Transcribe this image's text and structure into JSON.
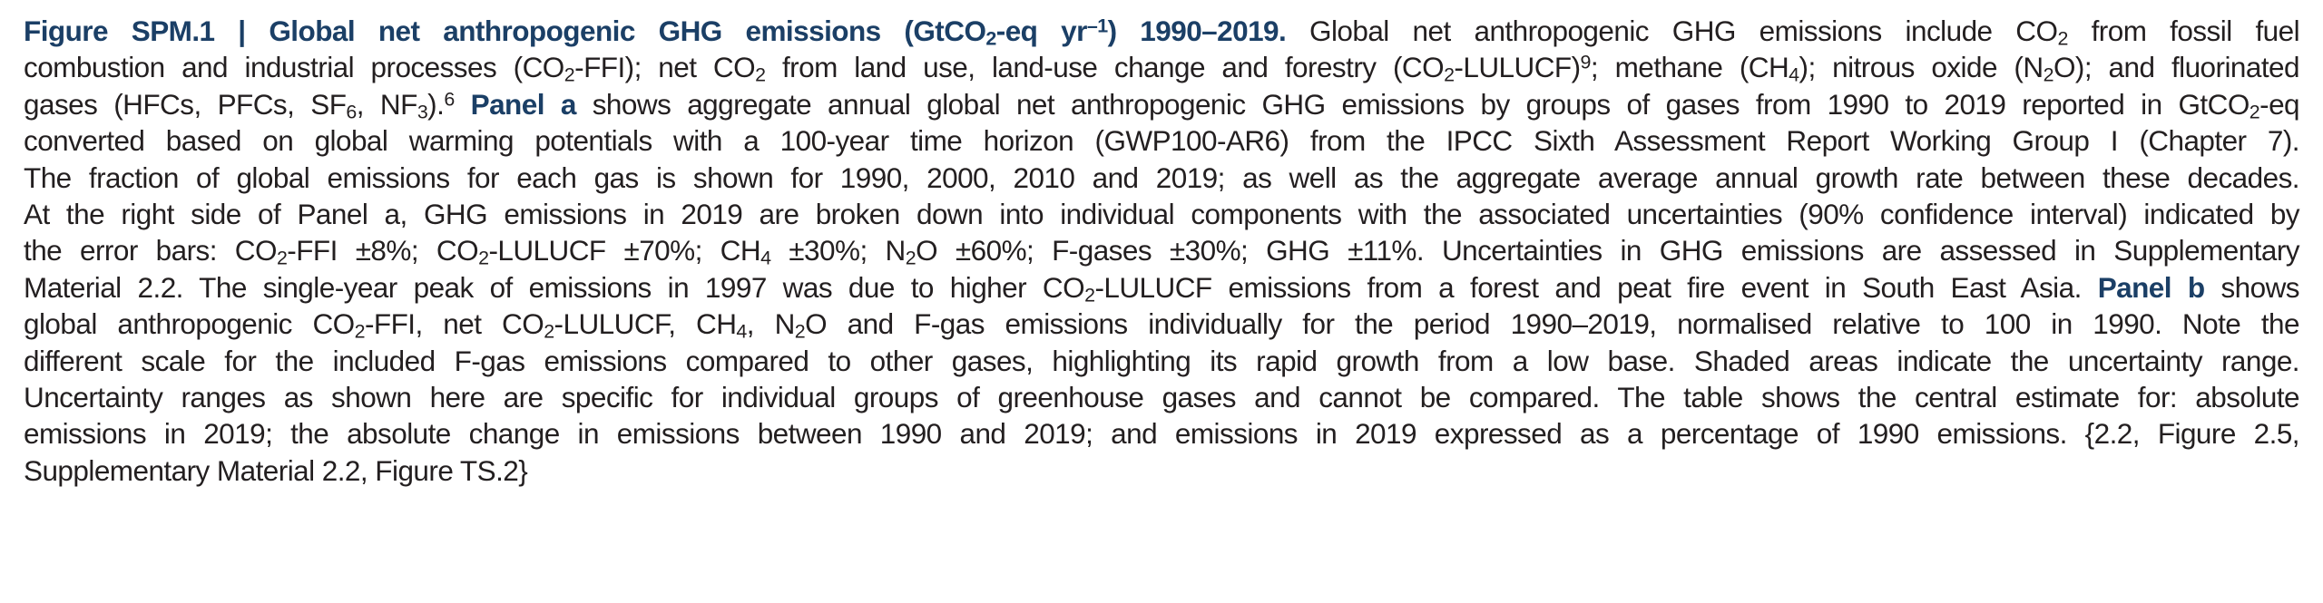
{
  "caption": {
    "title": {
      "a": "Figure SPM.1 | Global net anthropogenic GHG emissions (GtCO",
      "sub": "2",
      "b": "-eq yr",
      "sup": "–1",
      "c": ") 1990–2019."
    },
    "l1": {
      "a": " Global net anthropogenic GHG emissions include CO",
      "s1": "2",
      "b": " from fossil fuel"
    },
    "l2": {
      "a": "combustion and industrial processes (CO",
      "s1": "2",
      "b": "-FFI); net CO",
      "s2": "2",
      "c": " from land use, land-use change and forestry (CO",
      "s3": "2",
      "d": "-LULUCF)",
      "sup": "9",
      "e": "; methane (CH",
      "s4": "4",
      "f": "); nitrous oxide (N",
      "s5": "2",
      "g": "O); and fluorinated"
    },
    "l3": {
      "a": "gases (HFCs, PFCs, SF",
      "s1": "6",
      "b": ", NF",
      "s2": "3",
      "c": ").",
      "sup": "6",
      "d": " ",
      "panel": "Panel a",
      "e": " shows aggregate annual global net anthropogenic GHG emissions by groups of gases from 1990 to 2019 reported in GtCO",
      "s3": "2",
      "f": "-eq"
    },
    "l4": "converted based on global warming potentials with a 100-year time horizon (GWP100-AR6) from the IPCC Sixth Assessment Report Working Group I (Chapter 7).",
    "l5": "The fraction of global emissions for each gas is shown for 1990, 2000, 2010 and 2019; as well as the aggregate average annual growth rate between these decades.",
    "l6": "At the right side of Panel a, GHG emissions in 2019 are broken down into individual components with the associated uncertainties (90% confidence interval) indicated by",
    "l7": {
      "a": "the error bars: CO",
      "s1": "2",
      "b": "-FFI ±8%; CO",
      "s2": "2",
      "c": "-LULUCF ±70%; CH",
      "s3": "4",
      "d": " ±30%; N",
      "s4": "2",
      "e": "O ±60%; F-gases ±30%; GHG ±11%. Uncertainties in GHG emissions are assessed in Supplementary"
    },
    "l8": {
      "a": "Material 2.2. The single-year peak of emissions in 1997 was due to higher CO",
      "s1": "2",
      "b": "-LULUCF emissions from a forest and peat fire event in South East Asia. ",
      "panel": "Panel b",
      "c": " shows"
    },
    "l9": {
      "a": "global anthropogenic CO",
      "s1": "2",
      "b": "-FFI, net CO",
      "s2": "2",
      "c": "-LULUCF, CH",
      "s3": "4",
      "d": ", N",
      "s4": "2",
      "e": "O and F-gas emissions individually for the period 1990–2019, normalised relative to 100 in 1990. Note the"
    },
    "l10": "different scale for the included F-gas emissions compared to other gases, highlighting its rapid growth from a low base. Shaded areas indicate the uncertainty range.",
    "l11": "Uncertainty ranges as shown here are specific for individual groups of greenhouse gases and cannot be compared. The table shows the central estimate for: absolute",
    "l12": "emissions in 2019; the absolute change in emissions between 1990 and 2019; and emissions in 2019 expressed as a percentage of 1990 emissions. {2.2, Figure 2.5,",
    "l13": "Supplementary Material 2.2, Figure TS.2}"
  }
}
